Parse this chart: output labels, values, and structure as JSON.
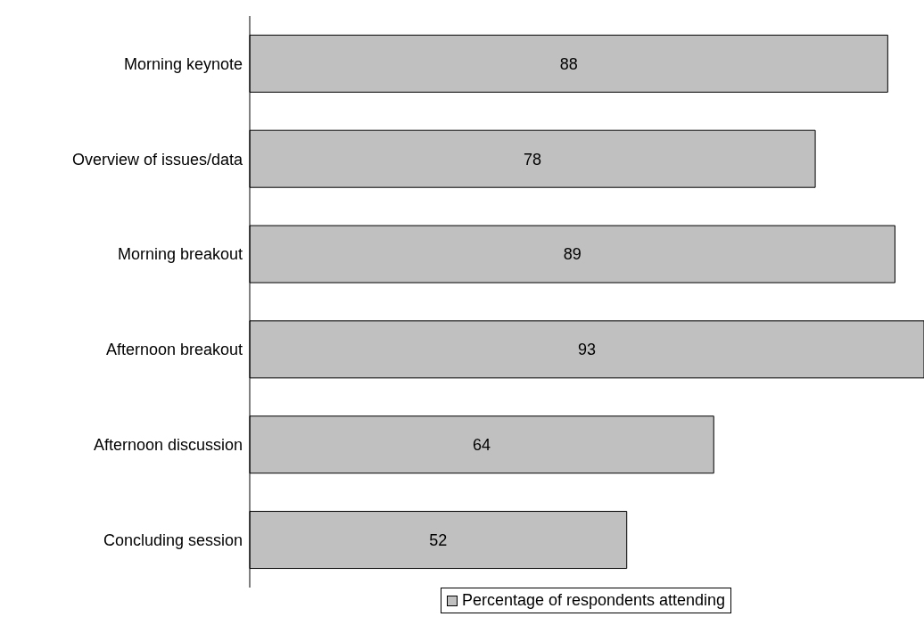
{
  "chart_data": {
    "type": "bar",
    "orientation": "horizontal",
    "categories": [
      "Morning keynote",
      "Overview of issues/data",
      "Morning breakout",
      "Afternoon breakout",
      "Afternoon discussion",
      "Concluding session"
    ],
    "series": [
      {
        "name": "Percentage of respondents attending",
        "color": "#c0c0c0",
        "values": [
          88,
          78,
          89,
          93,
          64,
          52
        ]
      }
    ],
    "data_labels": true,
    "legend": "bottom",
    "grid": false
  }
}
